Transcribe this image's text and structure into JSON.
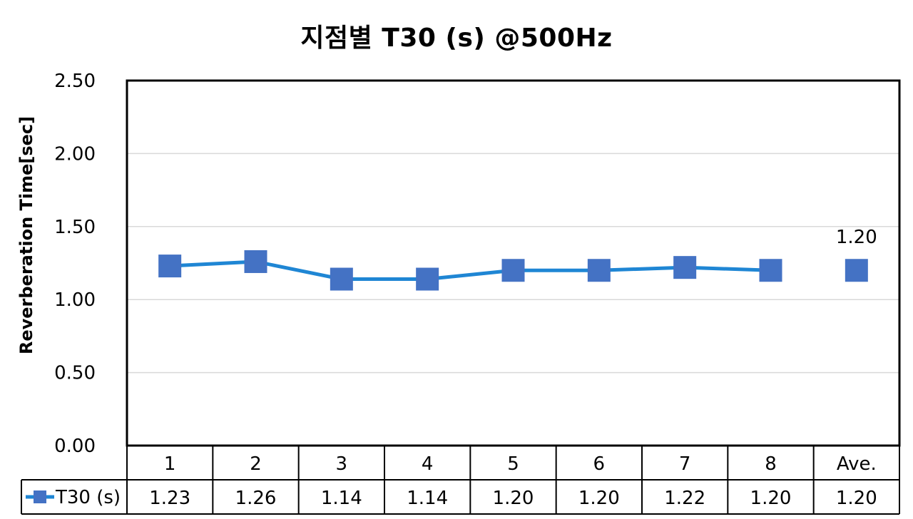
{
  "chart_data": {
    "type": "line",
    "title": "지점별 T30 (s) @500Hz",
    "xlabel": "",
    "ylabel": "Reverberation Time[sec]",
    "ylim": [
      0,
      2.5
    ],
    "ytick_labels": [
      "0.00",
      "0.50",
      "1.00",
      "1.50",
      "2.00",
      "2.50"
    ],
    "grid": true,
    "categories": [
      "1",
      "2",
      "3",
      "4",
      "5",
      "6",
      "7",
      "8",
      "Ave."
    ],
    "series": [
      {
        "name": "T30 (s)",
        "color": "#4472C4",
        "line_color": "#1F86D4",
        "values": [
          1.23,
          1.26,
          1.14,
          1.14,
          1.2,
          1.2,
          1.22,
          1.2,
          1.2
        ],
        "table_values": [
          "1.23",
          "1.26",
          "1.14",
          "1.14",
          "1.20",
          "1.20",
          "1.22",
          "1.20",
          "1.20"
        ],
        "connected_points": 8
      }
    ],
    "annotations": [
      {
        "category": "Ave.",
        "text": "1.20"
      }
    ],
    "legend": "data-table-left"
  }
}
